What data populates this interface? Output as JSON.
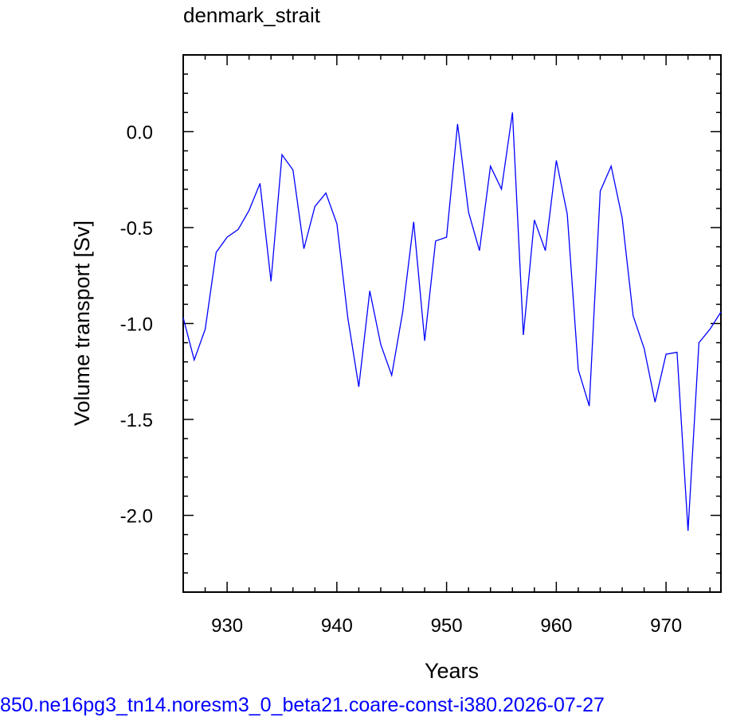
{
  "chart_data": {
    "type": "line",
    "title": "denmark_strait",
    "xlabel": "Years",
    "ylabel": "Volume transport [Sv]",
    "xlim": [
      926,
      975
    ],
    "ylim": [
      -2.4,
      0.4
    ],
    "x_ticks": [
      930,
      940,
      950,
      960,
      970
    ],
    "x_tick_labels": [
      "930",
      "940",
      "950",
      "960",
      "970"
    ],
    "y_ticks": [
      0.0,
      -0.5,
      -1.0,
      -1.5,
      -2.0
    ],
    "y_tick_labels": [
      "0.0",
      "-0.5",
      "-1.0",
      "-1.5",
      "-2.0"
    ],
    "grid": false,
    "series": [
      {
        "color": "#0000ff",
        "x": [
          926,
          927,
          928,
          929,
          930,
          931,
          932,
          933,
          934,
          935,
          936,
          937,
          938,
          939,
          940,
          941,
          942,
          943,
          944,
          945,
          946,
          947,
          948,
          949,
          950,
          951,
          952,
          953,
          954,
          955,
          956,
          957,
          958,
          959,
          960,
          961,
          962,
          963,
          964,
          965,
          966,
          967,
          968,
          969,
          970,
          971,
          972,
          973,
          974,
          975
        ],
        "y": [
          -0.97,
          -1.19,
          -1.03,
          -0.63,
          -0.55,
          -0.51,
          -0.41,
          -0.27,
          -0.78,
          -0.12,
          -0.2,
          -0.61,
          -0.39,
          -0.32,
          -0.48,
          -0.97,
          -1.33,
          -0.83,
          -1.11,
          -1.27,
          -0.94,
          -0.47,
          -1.09,
          -0.57,
          -0.55,
          0.04,
          -0.42,
          -0.62,
          -0.18,
          -0.3,
          0.1,
          -1.06,
          -0.46,
          -0.62,
          -0.15,
          -0.43,
          -1.24,
          -1.43,
          -0.31,
          -0.18,
          -0.45,
          -0.96,
          -1.13,
          -1.41,
          -1.16,
          -1.15,
          -2.08,
          -1.1,
          -1.03,
          -0.94
        ]
      }
    ]
  },
  "caption": "850.ne16pg3_tn14.noresm3_0_beta21.coare-const-i380.2026-07-27"
}
